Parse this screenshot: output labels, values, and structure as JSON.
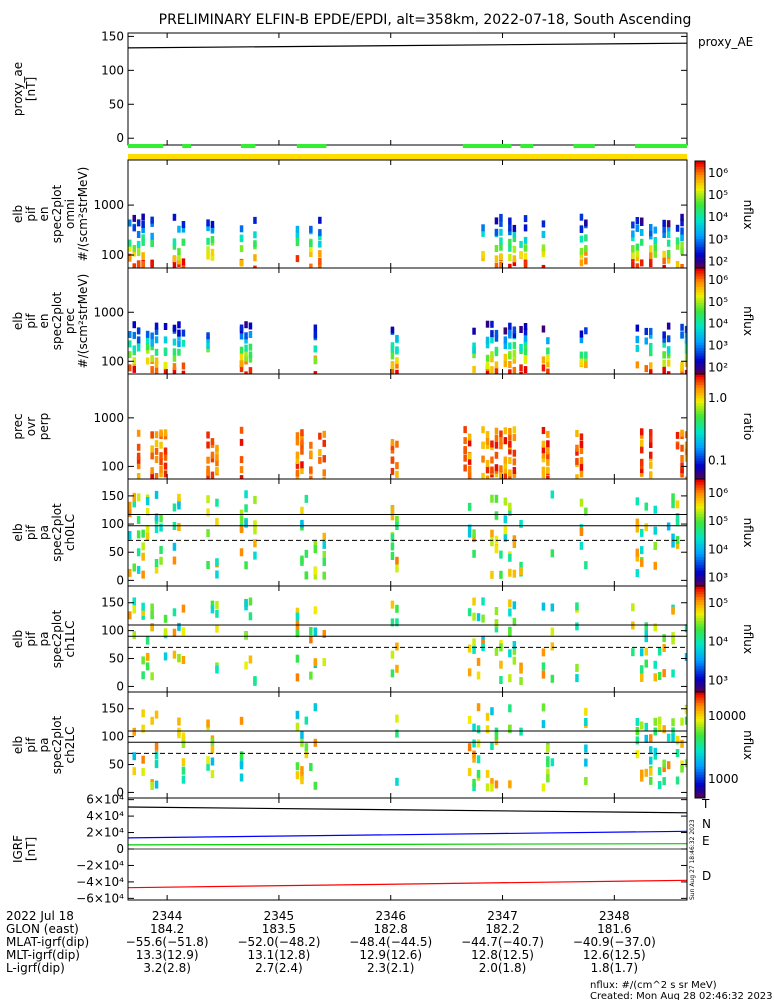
{
  "title": "PRELIMINARY ELFIN-B EPDE/EPDI, alt=358km, 2022-07-18, South Ascending",
  "colorbar_side_label": "Sun Aug 27 18:46:32 2023",
  "footer": {
    "line1": "nflux: #/(cm^2 s sr MeV)",
    "line2": "Created: Mon Aug 28 02:46:32 2023"
  },
  "ephemeris": {
    "labels": [
      "2022 Jul 18",
      "GLON (east)",
      "MLAT-igrf(dip)",
      "MLT-igrf(dip)",
      "L-igrf(dip)"
    ],
    "columns": [
      {
        "time": "2344",
        "glon": "184.2",
        "mlat": "−55.6(−51.8)",
        "mlt": "13.3(12.9)",
        "l": "3.2(2.8)"
      },
      {
        "time": "2345",
        "glon": "183.5",
        "mlat": "−52.0(−48.2)",
        "mlt": "13.1(12.8)",
        "l": "2.7(2.4)"
      },
      {
        "time": "2346",
        "glon": "182.8",
        "mlat": "−48.4(−44.5)",
        "mlt": "12.9(12.6)",
        "l": "2.3(2.1)"
      },
      {
        "time": "2347",
        "glon": "182.2",
        "mlat": "−44.7(−40.7)",
        "mlt": "12.8(12.5)",
        "l": "2.0(1.8)"
      },
      {
        "time": "2348",
        "glon": "181.6",
        "mlat": "−40.9(−37.0)",
        "mlt": "12.6(12.5)",
        "l": "1.8(1.7)"
      }
    ]
  },
  "chart_data": [
    {
      "type": "line",
      "ylabel": "proxy_ae\n[nT]",
      "ylim": [
        -10,
        155
      ],
      "ticks": [
        "0",
        "50",
        "100",
        "150"
      ],
      "tick_values": [
        0,
        50,
        100,
        150
      ],
      "series": [
        {
          "name": "proxy_AE",
          "color": "#000000",
          "x": [
            0,
            1
          ],
          "values": [
            133,
            140
          ]
        }
      ],
      "bars": {
        "green": [
          [
            0.0,
            0.063
          ],
          [
            0.097,
            0.113
          ],
          [
            0.202,
            0.228
          ],
          [
            0.302,
            0.355
          ],
          [
            0.599,
            0.686
          ],
          [
            0.702,
            0.725
          ],
          [
            0.797,
            0.835
          ],
          [
            0.907,
            1.0
          ]
        ],
        "yellow": [
          [
            0.0,
            1.0
          ]
        ]
      }
    },
    {
      "type": "heatmap",
      "ylabel": "elb\npif\nen\nspec2plot\nomni\n#/(scm²strMeV)",
      "ylim_log": [
        55,
        8000
      ],
      "ticks": [
        "100",
        "1000"
      ],
      "tick_values": [
        100,
        1000
      ],
      "colorbar": {
        "label": "nflux",
        "ticks": [
          "10²",
          "10³",
          "10⁴",
          "10⁵",
          "10⁶"
        ]
      }
    },
    {
      "type": "heatmap",
      "ylabel": "elb\npif\nen\nspec2plot\nprec\n#/(scm²strMeV)",
      "ylim_log": [
        55,
        8000
      ],
      "ticks": [
        "100",
        "1000"
      ],
      "tick_values": [
        100,
        1000
      ],
      "colorbar": {
        "label": "nflux",
        "ticks": [
          "10²",
          "10³",
          "10⁴",
          "10⁵",
          "10⁶"
        ]
      }
    },
    {
      "type": "heatmap",
      "ylabel": "prec\novr\nperp",
      "ylim_log": [
        55,
        8000
      ],
      "ticks": [
        "100",
        "1000"
      ],
      "tick_values": [
        100,
        1000
      ],
      "colorbar": {
        "label": "ratio",
        "ticks": [
          "0.1",
          "1.0"
        ]
      }
    },
    {
      "type": "heatmap",
      "ylabel": "elb\npif\npa\nspec2plot\nch0LC",
      "ylim": [
        -10,
        180
      ],
      "ticks": [
        "0",
        "50",
        "100",
        "150"
      ],
      "tick_values": [
        0,
        50,
        100,
        150
      ],
      "lines": {
        "solid": [
          117,
          97
        ],
        "dashed": 71
      },
      "colorbar": {
        "label": "nflux",
        "ticks": [
          "10³",
          "10⁴",
          "10⁵",
          "10⁶"
        ]
      }
    },
    {
      "type": "heatmap",
      "ylabel": "elb\npif\npa\nspec2plot\nch1LC",
      "ylim": [
        -10,
        180
      ],
      "ticks": [
        "0",
        "50",
        "100",
        "150"
      ],
      "tick_values": [
        0,
        50,
        100,
        150
      ],
      "lines": {
        "solid": [
          110,
          90
        ],
        "dashed": 70
      },
      "colorbar": {
        "label": "nflux",
        "ticks": [
          "10³",
          "10⁴",
          "10⁵"
        ]
      }
    },
    {
      "type": "heatmap",
      "ylabel": "elb\npif\npa\nspec2plot\nch2LC",
      "ylim": [
        -10,
        180
      ],
      "ticks": [
        "0",
        "50",
        "100",
        "150"
      ],
      "tick_values": [
        0,
        50,
        100,
        150
      ],
      "lines": {
        "solid": [
          110,
          90
        ],
        "dashed": 70
      },
      "colorbar": {
        "label": "nflux",
        "ticks": [
          "1000",
          "10000"
        ]
      }
    },
    {
      "type": "line",
      "ylabel": "IGRF\n[nT]",
      "ylim": [
        -62000,
        62000
      ],
      "ticks": [
        "−6×10⁴",
        "−4×10⁴",
        "−2×10⁴",
        "0",
        "2×10⁴",
        "4×10⁴",
        "6×10⁴"
      ],
      "tick_values": [
        -60000,
        -40000,
        -20000,
        0,
        20000,
        40000,
        60000
      ],
      "series": [
        {
          "name": "T",
          "color": "#000000",
          "x": [
            0,
            1
          ],
          "values": [
            51000,
            44000
          ]
        },
        {
          "name": "N",
          "color": "#0000ff",
          "x": [
            0,
            1
          ],
          "values": [
            13500,
            21500
          ]
        },
        {
          "name": "E",
          "color": "#00cc00",
          "x": [
            0,
            1
          ],
          "values": [
            5000,
            6500
          ]
        },
        {
          "name": "D",
          "color": "#ff0000",
          "x": [
            0,
            1
          ],
          "values": [
            -47000,
            -38000
          ]
        }
      ]
    }
  ],
  "x_axis": {
    "ticks": [
      "2344",
      "2345",
      "2346",
      "2347",
      "2348"
    ]
  }
}
